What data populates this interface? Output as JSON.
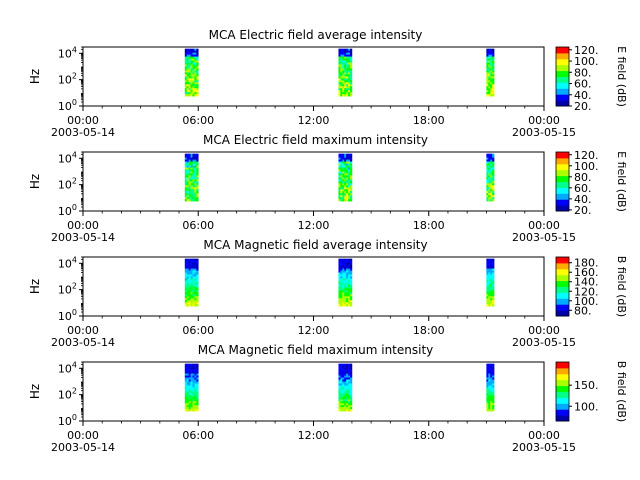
{
  "chart_data": [
    {
      "type": "heatmap",
      "title": "MCA  Electric field average intensity",
      "ylabel": "Hz",
      "yscale": "log",
      "ylim": [
        1,
        30000
      ],
      "yticks": [
        {
          "e": 0
        },
        {
          "e": 2
        },
        {
          "e": 4
        }
      ],
      "xticks": [
        {
          "time": "00:00",
          "date": "2003-05-14",
          "h": 0
        },
        {
          "time": "06:00",
          "date": "",
          "h": 6
        },
        {
          "time": "12:00",
          "date": "",
          "h": 12
        },
        {
          "time": "18:00",
          "date": "",
          "h": 18
        },
        {
          "time": "00:00",
          "date": "2003-05-15",
          "h": 24
        }
      ],
      "xlim_hours": [
        0,
        24
      ],
      "colorbar": {
        "label": "E field (dB)",
        "range": [
          20,
          125
        ],
        "ticks": [
          "20.",
          "40.",
          "60.",
          "80.",
          "100.",
          "120."
        ],
        "tick_values": [
          20,
          40,
          60,
          80,
          100,
          120
        ]
      },
      "passes": [
        {
          "start_h": 5.3,
          "end_h": 6.0
        },
        {
          "start_h": 13.3,
          "end_h": 14.0
        },
        {
          "start_h": 21.0,
          "end_h": 21.4
        }
      ]
    },
    {
      "type": "heatmap",
      "title": "MCA  Electric field maximum intensity",
      "ylabel": "Hz",
      "yscale": "log",
      "ylim": [
        1,
        30000
      ],
      "yticks": [
        {
          "e": 0
        },
        {
          "e": 2
        },
        {
          "e": 4
        }
      ],
      "xticks": [
        {
          "time": "00:00",
          "date": "2003-05-14",
          "h": 0
        },
        {
          "time": "06:00",
          "date": "",
          "h": 6
        },
        {
          "time": "12:00",
          "date": "",
          "h": 12
        },
        {
          "time": "18:00",
          "date": "",
          "h": 18
        },
        {
          "time": "00:00",
          "date": "2003-05-15",
          "h": 24
        }
      ],
      "xlim_hours": [
        0,
        24
      ],
      "colorbar": {
        "label": "E field (dB)",
        "range": [
          18,
          125
        ],
        "ticks": [
          "20.",
          "40.",
          "60.",
          "80.",
          "100.",
          "120."
        ],
        "tick_values": [
          20,
          40,
          60,
          80,
          100,
          120
        ]
      },
      "passes": [
        {
          "start_h": 5.3,
          "end_h": 6.0
        },
        {
          "start_h": 13.3,
          "end_h": 14.0
        },
        {
          "start_h": 21.0,
          "end_h": 21.4
        }
      ]
    },
    {
      "type": "heatmap",
      "title": "MCA  Magnetic field average intensity",
      "ylabel": "Hz",
      "yscale": "log",
      "ylim": [
        1,
        30000
      ],
      "yticks": [
        {
          "e": 0
        },
        {
          "e": 2
        },
        {
          "e": 4
        }
      ],
      "xticks": [
        {
          "time": "00:00",
          "date": "2003-05-14",
          "h": 0
        },
        {
          "time": "06:00",
          "date": "",
          "h": 6
        },
        {
          "time": "12:00",
          "date": "",
          "h": 12
        },
        {
          "time": "18:00",
          "date": "",
          "h": 18
        },
        {
          "time": "00:00",
          "date": "2003-05-15",
          "h": 24
        }
      ],
      "xlim_hours": [
        0,
        24
      ],
      "colorbar": {
        "label": "B field (dB)",
        "range": [
          68,
          192
        ],
        "ticks": [
          "80.",
          "100.",
          "120.",
          "140.",
          "160.",
          "180."
        ],
        "tick_values": [
          80,
          100,
          120,
          140,
          160,
          180
        ]
      },
      "passes": [
        {
          "start_h": 5.3,
          "end_h": 6.0
        },
        {
          "start_h": 13.3,
          "end_h": 14.0
        },
        {
          "start_h": 21.0,
          "end_h": 21.4
        }
      ]
    },
    {
      "type": "heatmap",
      "title": "MCA  Magnetic field maximum intensity",
      "ylabel": "Hz",
      "yscale": "log",
      "ylim": [
        1,
        30000
      ],
      "yticks": [
        {
          "e": 0
        },
        {
          "e": 2
        },
        {
          "e": 4
        }
      ],
      "xticks": [
        {
          "time": "00:00",
          "date": "2003-05-14",
          "h": 0
        },
        {
          "time": "06:00",
          "date": "",
          "h": 6
        },
        {
          "time": "12:00",
          "date": "",
          "h": 12
        },
        {
          "time": "18:00",
          "date": "",
          "h": 18
        },
        {
          "time": "00:00",
          "date": "2003-05-15",
          "h": 24
        }
      ],
      "xlim_hours": [
        0,
        24
      ],
      "colorbar": {
        "label": "B field (dB)",
        "range": [
          65,
          205
        ],
        "ticks": [
          "100.",
          "150."
        ],
        "tick_values": [
          100,
          150
        ]
      },
      "passes": [
        {
          "start_h": 5.3,
          "end_h": 6.0
        },
        {
          "start_h": 13.3,
          "end_h": 14.0
        },
        {
          "start_h": 21.0,
          "end_h": 21.4
        }
      ]
    }
  ],
  "colormap": [
    "#0000aa",
    "#0000ff",
    "#00aaff",
    "#00ffff",
    "#00ff88",
    "#00ff00",
    "#aaff00",
    "#ffff00",
    "#ffaa00",
    "#ff0000"
  ]
}
